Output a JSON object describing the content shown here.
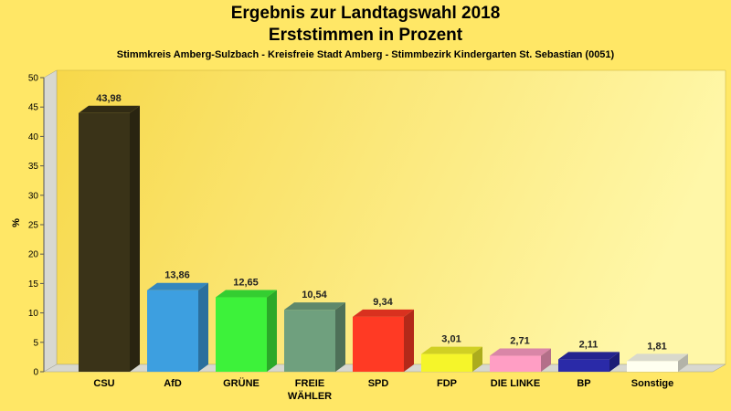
{
  "header": {
    "title_line1": "Ergebnis zur Landtagswahl 2018",
    "title_line2": "Erststimmen in Prozent",
    "subtitle": "Stimmkreis Amberg-Sulzbach - Kreisfreie Stadt Amberg - Stimmbezirk Kindergarten St. Sebastian (0051)"
  },
  "chart_data": {
    "type": "bar",
    "title": "Ergebnis zur Landtagswahl 2018",
    "subtitle": "Erststimmen in Prozent",
    "xlabel": "",
    "ylabel": "%",
    "ylim": [
      0,
      50
    ],
    "yticks": [
      0,
      5,
      10,
      15,
      20,
      25,
      30,
      35,
      40,
      45,
      50
    ],
    "grid": false,
    "legend": "none",
    "categories": [
      [
        "CSU"
      ],
      [
        "AfD"
      ],
      [
        "GRÜNE"
      ],
      [
        "FREIE",
        "WÄHLER"
      ],
      [
        "SPD"
      ],
      [
        "FDP"
      ],
      [
        "DIE LINKE"
      ],
      [
        "BP"
      ],
      [
        "Sonstige"
      ]
    ],
    "values": [
      43.98,
      13.86,
      12.65,
      10.54,
      9.34,
      3.01,
      2.71,
      2.11,
      1.81
    ],
    "value_labels": [
      "43,98",
      "13,86",
      "12,65",
      "10,54",
      "9,34",
      "3,01",
      "2,71",
      "2,11",
      "1,81"
    ],
    "colors": [
      "#3a3318",
      "#3d9fe0",
      "#3df23a",
      "#6fa07e",
      "#ff3a24",
      "#f5f52a",
      "#ff9ec4",
      "#2a2aa8",
      "#fffff0"
    ]
  }
}
